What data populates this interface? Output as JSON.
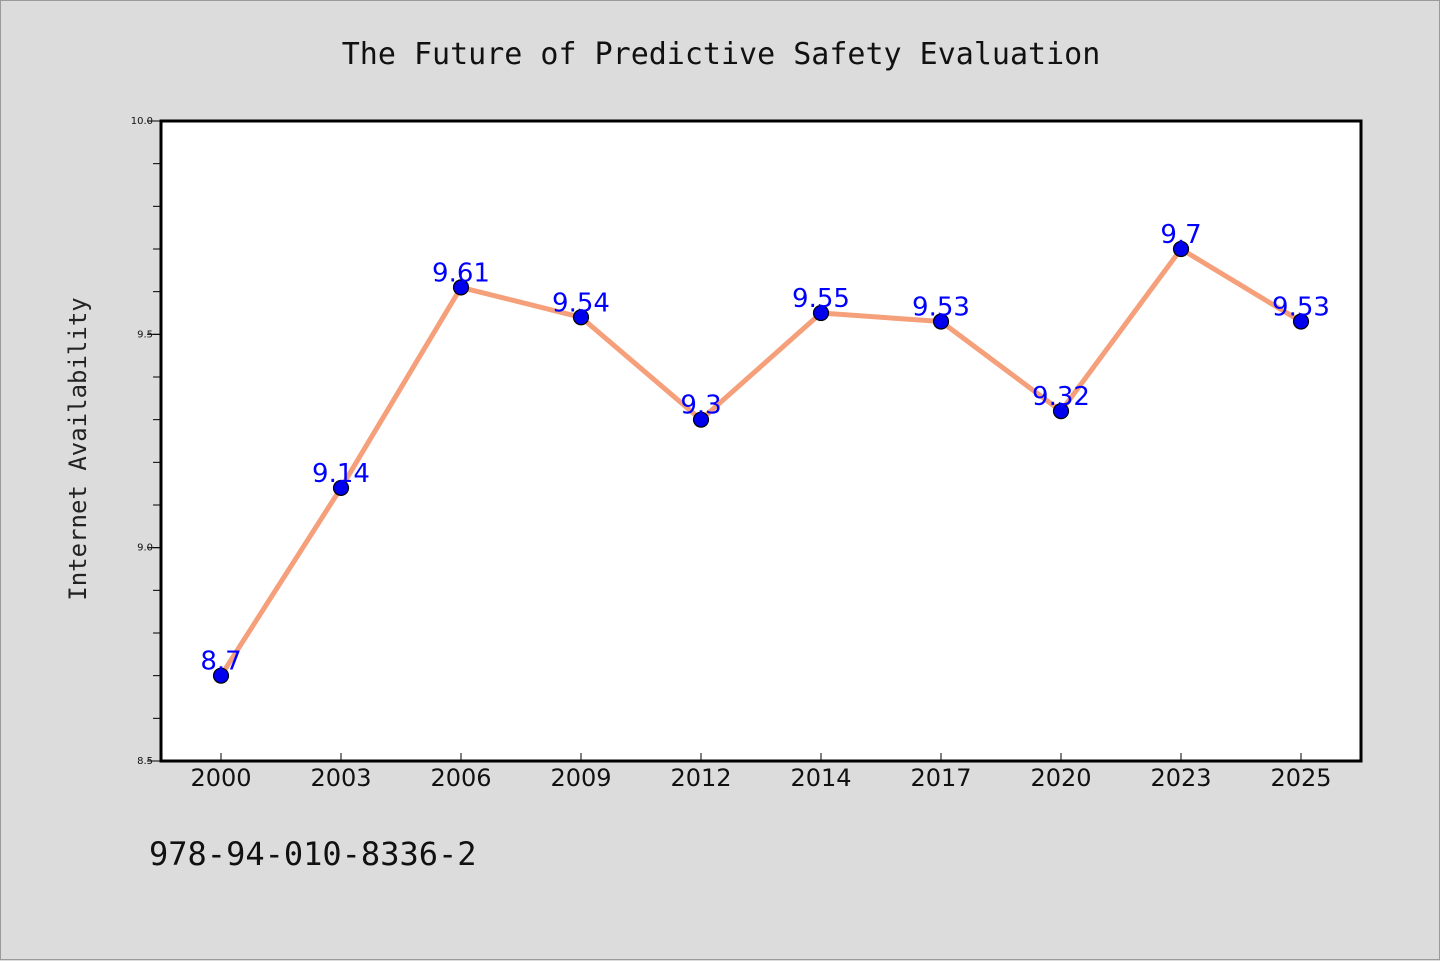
{
  "chart_data": {
    "type": "line",
    "title": "The Future of Predictive Safety Evaluation",
    "xlabel": "",
    "ylabel": "Internet Availability",
    "categories": [
      "2000",
      "2003",
      "2006",
      "2009",
      "2012",
      "2014",
      "2017",
      "2020",
      "2023",
      "2025"
    ],
    "series": [
      {
        "values": [
          8.7,
          9.14,
          9.61,
          9.54,
          9.3,
          9.55,
          9.53,
          9.32,
          9.7,
          9.53
        ],
        "labels": [
          "8.7",
          "9.14",
          "9.61",
          "9.54",
          "9.3",
          "9.55",
          "9.53",
          "9.32",
          "9.7",
          "9.53"
        ],
        "line_color": "#f5a07a",
        "marker_color": "#0000ee"
      }
    ],
    "ylim": [
      8.5,
      10.0
    ],
    "yticks": [
      "8.5",
      "9.0",
      "9.5",
      "10.0"
    ],
    "yticks_values": [
      8.5,
      9.0,
      9.5,
      10.0
    ],
    "grid": false,
    "legend": "none"
  },
  "footer": {
    "isbn": "978-94-010-8336-2"
  },
  "colors": {
    "background": "#dcdcdc",
    "plot_background": "#ffffff",
    "label_color": "#0000ff"
  }
}
